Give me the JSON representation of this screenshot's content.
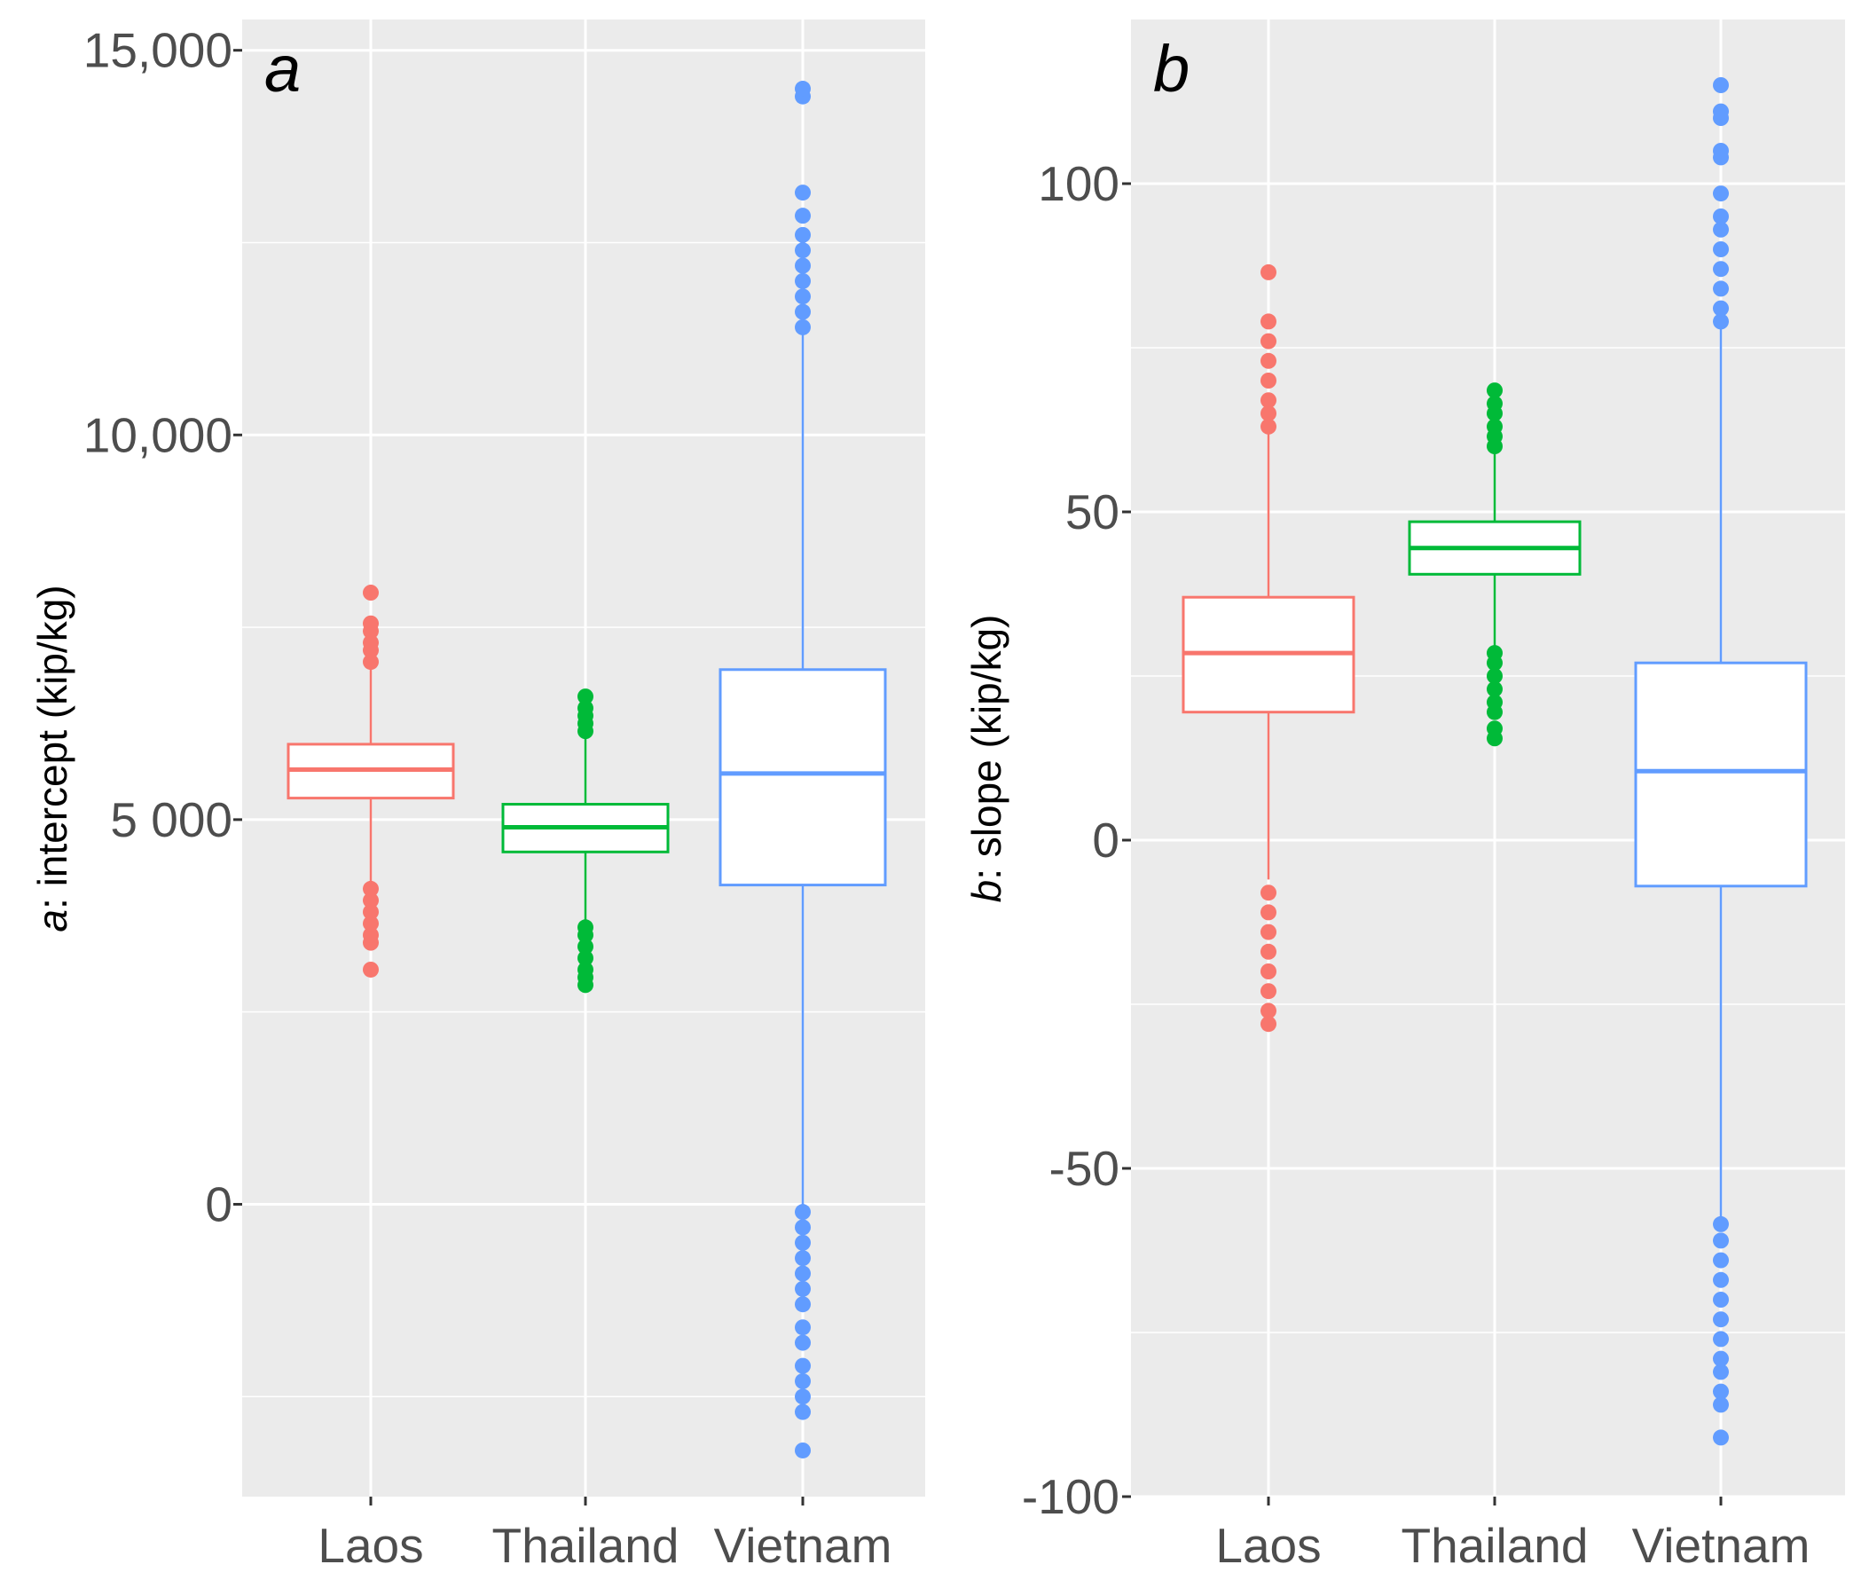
{
  "colors": {
    "Laos": "#F8766D",
    "Thailand": "#00BA38",
    "Vietnam": "#619CFF",
    "panel_bg": "#EBEBEB",
    "grid": "#FFFFFF"
  },
  "chart_data": [
    {
      "type": "box",
      "panel_label": "a",
      "ylabel_italic": "a",
      "ylabel_rest": ": intercept (kip/kg)",
      "ylim": [
        -3800,
        15400
      ],
      "ticks": [
        {
          "value": 15000,
          "label": "15,000"
        },
        {
          "value": 10000,
          "label": "10,000"
        },
        {
          "value": 5000,
          "label": "5 000"
        },
        {
          "value": 0,
          "label": "0"
        }
      ],
      "minor_grid": [
        12500,
        7500,
        2500,
        -2500
      ],
      "categories": [
        "Laos",
        "Thailand",
        "Vietnam"
      ],
      "series": [
        {
          "name": "Laos",
          "q1": 5280,
          "median": 5650,
          "q3": 5980,
          "whisker_low": 4200,
          "whisker_high": 7000,
          "outliers": [
            3050,
            3400,
            3500,
            3650,
            3800,
            3950,
            4100,
            7050,
            7200,
            7300,
            7450,
            7550,
            7950
          ]
        },
        {
          "name": "Thailand",
          "q1": 4580,
          "median": 4900,
          "q3": 5200,
          "whisker_low": 3650,
          "whisker_high": 6100,
          "outliers": [
            2850,
            2950,
            3050,
            3200,
            3350,
            3500,
            3600,
            6150,
            6250,
            6350,
            6450,
            6600
          ]
        },
        {
          "name": "Vietnam",
          "q1": 4150,
          "median": 5600,
          "q3": 6950,
          "whisker_low": -50,
          "whisker_high": 11300,
          "outliers": [
            -3200,
            -2700,
            -2500,
            -2300,
            -2100,
            -1800,
            -1600,
            -1300,
            -1100,
            -900,
            -700,
            -500,
            -300,
            -100,
            11400,
            11600,
            11800,
            12000,
            12200,
            12400,
            12600,
            12850,
            13150,
            14400,
            14500
          ]
        }
      ]
    },
    {
      "type": "box",
      "panel_label": "b",
      "ylabel_italic": "b",
      "ylabel_rest": ": slope (kip/kg)",
      "ylim": [
        -100,
        125
      ],
      "ticks": [
        {
          "value": 100,
          "label": "100"
        },
        {
          "value": 50,
          "label": "50"
        },
        {
          "value": 0,
          "label": "0"
        },
        {
          "value": -50,
          "label": "-50"
        },
        {
          "value": -100,
          "label": "-100"
        }
      ],
      "minor_grid": [
        75,
        25,
        -25,
        -75
      ],
      "categories": [
        "Laos",
        "Thailand",
        "Vietnam"
      ],
      "series": [
        {
          "name": "Laos",
          "q1": 19.5,
          "median": 28.5,
          "q3": 37,
          "whisker_low": -6,
          "whisker_high": 62.5,
          "outliers": [
            -28,
            -26,
            -23,
            -20,
            -17,
            -14,
            -11,
            -8,
            63,
            65,
            67,
            70,
            73,
            76,
            79,
            86.5
          ]
        },
        {
          "name": "Thailand",
          "q1": 40.5,
          "median": 44.5,
          "q3": 48.5,
          "whisker_low": 29,
          "whisker_high": 59.5,
          "outliers": [
            15.5,
            17,
            19.5,
            21,
            23,
            25,
            27,
            28.5,
            60,
            61.5,
            63,
            65,
            66.5,
            68.5
          ]
        },
        {
          "name": "Vietnam",
          "q1": -7,
          "median": 10.5,
          "q3": 27,
          "whisker_low": -57.5,
          "whisker_high": 78,
          "outliers": [
            -91,
            -86,
            -84,
            -81,
            -79,
            -76,
            -73,
            -70,
            -67,
            -64,
            -61,
            -58.5,
            79,
            81,
            84,
            87,
            90,
            93,
            95,
            98.5,
            104,
            105,
            110,
            111,
            115
          ]
        }
      ]
    }
  ]
}
